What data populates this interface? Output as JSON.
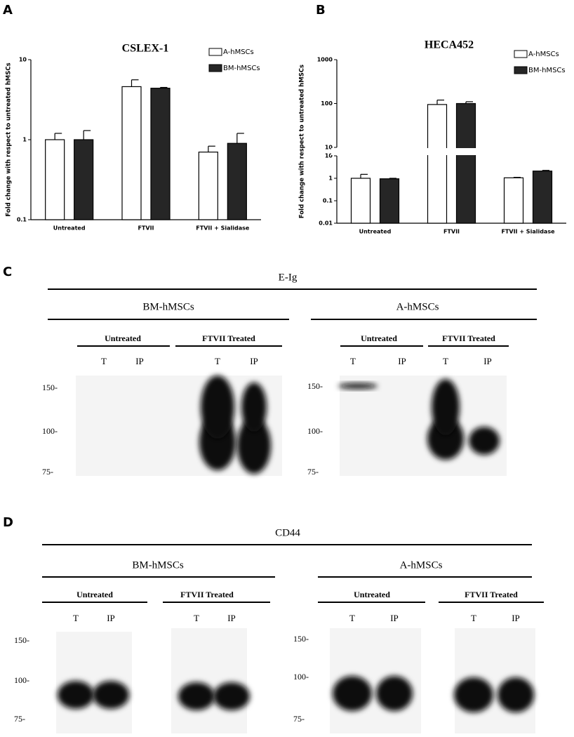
{
  "chart_data": [
    {
      "type": "bar",
      "panel": "A",
      "title": "CSLEX-1",
      "ylabel": "Fold change with respect to untreated hMSCs",
      "categories": [
        "Untreated",
        "FTVII",
        "FTVII + Sialidase"
      ],
      "log_scale": true,
      "ylim": [
        0.1,
        10
      ],
      "yticks": [
        0.1,
        1,
        10
      ],
      "legend": "upper right",
      "series": [
        {
          "name": "A-hMSCs",
          "color": "#ffffff",
          "values": [
            1,
            4.6,
            0.7
          ],
          "errors": [
            0.2,
            1.0,
            0.13
          ]
        },
        {
          "name": "BM-hMSCs",
          "color": "#262626",
          "values": [
            1,
            4.4,
            0.9
          ],
          "errors": [
            0.3,
            0.1,
            0.3
          ]
        }
      ]
    },
    {
      "type": "bar",
      "panel": "B",
      "title": "HECA452",
      "ylabel": "Fold change with respect to untreated hMSCs",
      "categories": [
        "Untreated",
        "FTVII",
        "FTVII + Sialidase"
      ],
      "log_scale": true,
      "segments": [
        {
          "ylim": [
            0.01,
            10
          ],
          "yticks": [
            0.01,
            0.1,
            1,
            10
          ]
        },
        {
          "ylim": [
            10,
            1000
          ],
          "yticks": [
            10,
            100,
            1000
          ]
        }
      ],
      "legend": "upper right",
      "series": [
        {
          "name": "A-hMSCs",
          "color": "#ffffff",
          "values": [
            1,
            95,
            1.05
          ],
          "errors": [
            0.5,
            25,
            0.05
          ]
        },
        {
          "name": "BM-hMSCs",
          "color": "#262626",
          "values": [
            0.95,
            100,
            2.1
          ],
          "errors": [
            0.05,
            10,
            0.15
          ]
        }
      ]
    }
  ],
  "blots": [
    {
      "panel": "C",
      "title": "E-Ig",
      "groups": [
        {
          "name": "BM-hMSCs",
          "markers": [
            "150-",
            "100-",
            "75-"
          ],
          "conditions": [
            {
              "name": "Untreated",
              "lanes": [
                "T",
                "IP"
              ]
            },
            {
              "name": "FTVII Treated",
              "lanes": [
                "T",
                "IP"
              ]
            }
          ]
        },
        {
          "name": "A-hMSCs",
          "markers": [
            "150-",
            "100-",
            "75-"
          ],
          "conditions": [
            {
              "name": "Untreated",
              "lanes": [
                "T",
                "IP"
              ]
            },
            {
              "name": "FTVII Treated",
              "lanes": [
                "T",
                "IP"
              ]
            }
          ]
        }
      ]
    },
    {
      "panel": "D",
      "title": "CD44",
      "groups": [
        {
          "name": "BM-hMSCs",
          "markers": [
            "150-",
            "100-",
            "75-"
          ],
          "conditions": [
            {
              "name": "Untreated",
              "lanes": [
                "T",
                "IP"
              ]
            },
            {
              "name": "FTVII Treated",
              "lanes": [
                "T",
                "IP"
              ]
            }
          ]
        },
        {
          "name": "A-hMSCs",
          "markers": [
            "150-",
            "100-",
            "75-"
          ],
          "conditions": [
            {
              "name": "Untreated",
              "lanes": [
                "T",
                "IP"
              ]
            },
            {
              "name": "FTVII Treated",
              "lanes": [
                "T",
                "IP"
              ]
            }
          ]
        }
      ]
    }
  ]
}
